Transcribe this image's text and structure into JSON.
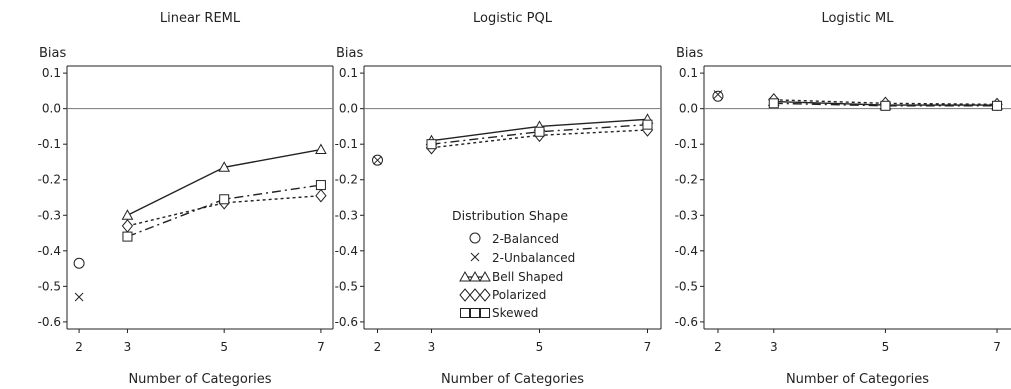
{
  "chart_data": [
    {
      "type": "line",
      "title": "Linear REML",
      "ylabel": "Bias",
      "xlabel": "Number of Categories",
      "xticks": [
        2,
        3,
        5,
        7
      ],
      "xlim": [
        1.75,
        7.25
      ],
      "yticks": [
        "0.1",
        "0.0",
        "-0.1",
        "-0.2",
        "-0.3",
        "-0.4",
        "-0.5",
        "-0.6"
      ],
      "ylim": [
        -0.62,
        0.12
      ],
      "reference_line": 0,
      "series": [
        {
          "name": "2-Balanced",
          "x": [
            2
          ],
          "y": [
            -0.435
          ],
          "marker": "circle"
        },
        {
          "name": "2-Unbalanced",
          "x": [
            2
          ],
          "y": [
            -0.53
          ],
          "marker": "x"
        },
        {
          "name": "Bell Shaped",
          "x": [
            3,
            5,
            7
          ],
          "y": [
            -0.3,
            -0.165,
            -0.115
          ],
          "marker": "triangle",
          "line": "solid"
        },
        {
          "name": "Polarized",
          "x": [
            3,
            5,
            7
          ],
          "y": [
            -0.33,
            -0.265,
            -0.245
          ],
          "marker": "diamond",
          "line": "dotted"
        },
        {
          "name": "Skewed",
          "x": [
            3,
            5,
            7
          ],
          "y": [
            -0.36,
            -0.255,
            -0.215
          ],
          "marker": "square",
          "line": "dashdot"
        }
      ]
    },
    {
      "type": "line",
      "title": "Logistic PQL",
      "ylabel": "Bias",
      "xlabel": "Number of Categories",
      "xticks": [
        2,
        3,
        5,
        7
      ],
      "xlim": [
        1.75,
        7.25
      ],
      "yticks": [
        "0.1",
        "0.0",
        "-0.1",
        "-0.2",
        "-0.3",
        "-0.4",
        "-0.5",
        "-0.6"
      ],
      "ylim": [
        -0.62,
        0.12
      ],
      "reference_line": 0,
      "series": [
        {
          "name": "2-Balanced",
          "x": [
            2
          ],
          "y": [
            -0.145
          ],
          "marker": "circle"
        },
        {
          "name": "2-Unbalanced",
          "x": [
            2
          ],
          "y": [
            -0.145
          ],
          "marker": "x"
        },
        {
          "name": "Bell Shaped",
          "x": [
            3,
            5,
            7
          ],
          "y": [
            -0.09,
            -0.05,
            -0.03
          ],
          "marker": "triangle",
          "line": "solid"
        },
        {
          "name": "Polarized",
          "x": [
            3,
            5,
            7
          ],
          "y": [
            -0.11,
            -0.075,
            -0.06
          ],
          "marker": "diamond",
          "line": "dotted"
        },
        {
          "name": "Skewed",
          "x": [
            3,
            5,
            7
          ],
          "y": [
            -0.1,
            -0.065,
            -0.045
          ],
          "marker": "square",
          "line": "dashdot"
        }
      ],
      "legend": {
        "title": "Distribution Shape",
        "position": "lower-center"
      }
    },
    {
      "type": "line",
      "title": "Logistic ML",
      "ylabel": "Bias",
      "xlabel": "Number of Categories",
      "xticks": [
        2,
        3,
        5,
        7
      ],
      "xlim": [
        1.75,
        7.25
      ],
      "yticks": [
        "0.1",
        "0.0",
        "-0.1",
        "-0.2",
        "-0.3",
        "-0.4",
        "-0.5",
        "-0.6"
      ],
      "ylim": [
        -0.62,
        0.12
      ],
      "reference_line": 0,
      "series": [
        {
          "name": "2-Balanced",
          "x": [
            2
          ],
          "y": [
            0.035
          ],
          "marker": "circle"
        },
        {
          "name": "2-Unbalanced",
          "x": [
            2
          ],
          "y": [
            0.04
          ],
          "marker": "x"
        },
        {
          "name": "Bell Shaped",
          "x": [
            3,
            5,
            7
          ],
          "y": [
            0.02,
            0.01,
            0.01
          ],
          "marker": "triangle",
          "line": "solid"
        },
        {
          "name": "Polarized",
          "x": [
            3,
            5,
            7
          ],
          "y": [
            0.025,
            0.015,
            0.012
          ],
          "marker": "diamond",
          "line": "dotted"
        },
        {
          "name": "Skewed",
          "x": [
            3,
            5,
            7
          ],
          "y": [
            0.015,
            0.008,
            0.008
          ],
          "marker": "square",
          "line": "dashdot"
        }
      ]
    }
  ]
}
